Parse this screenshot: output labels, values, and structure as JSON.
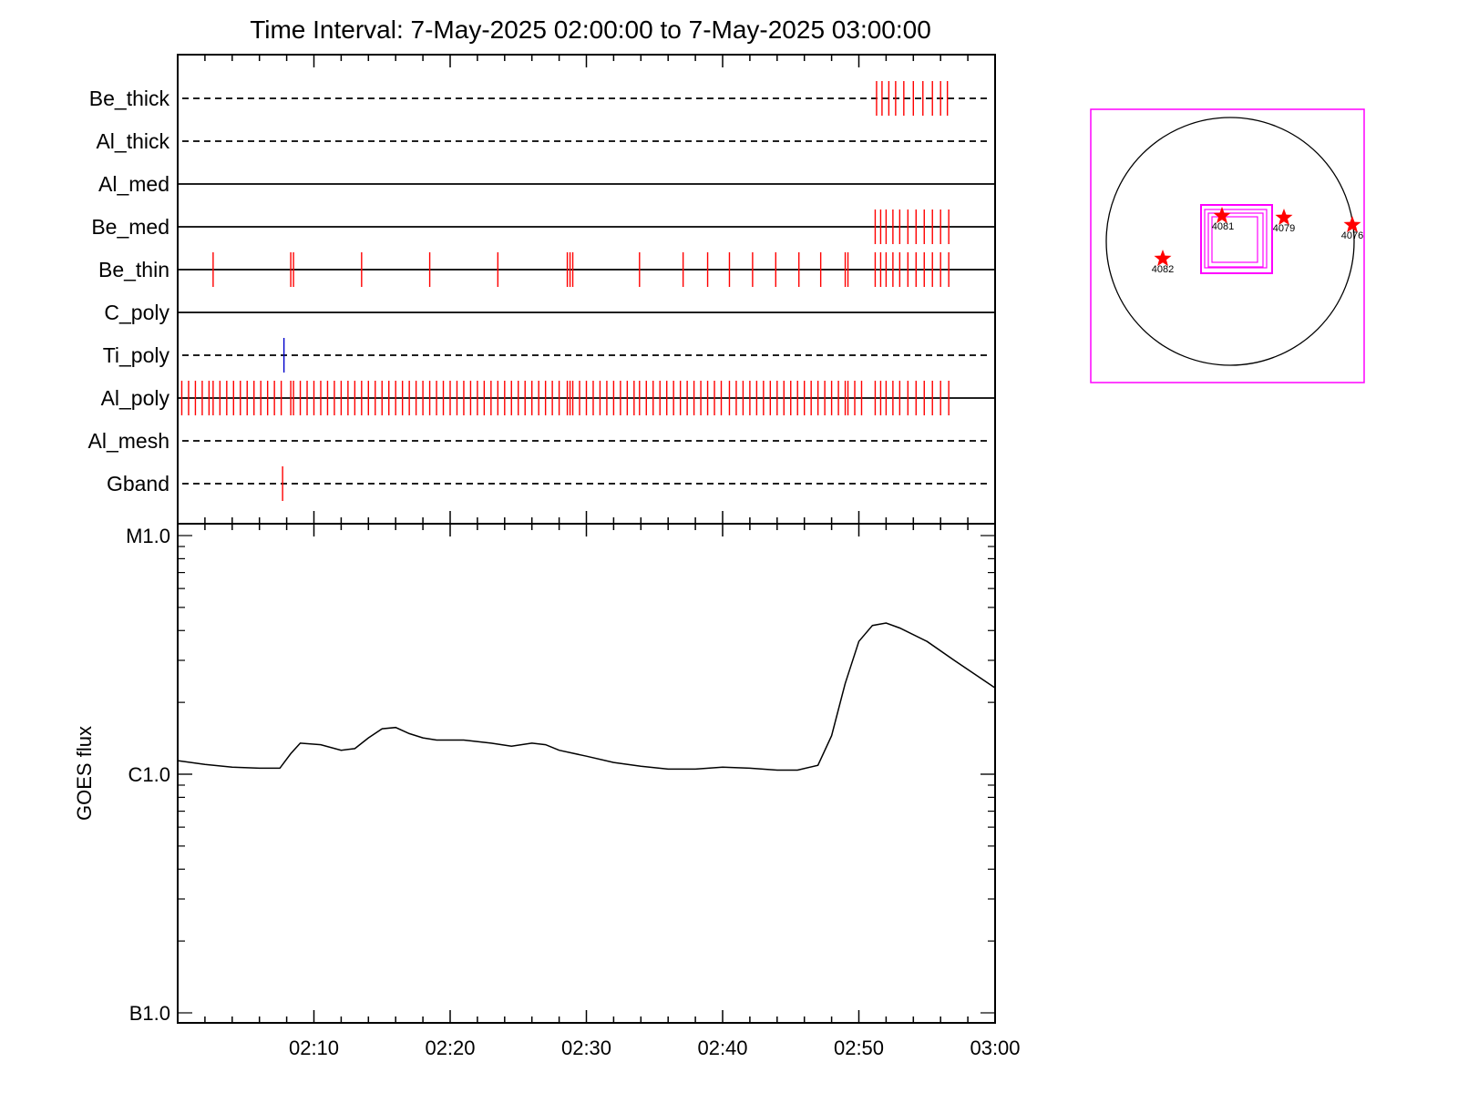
{
  "chart_data": [
    {
      "type": "table",
      "title": "Time Interval:  7-May-2025 02:00:00 to  7-May-2025 03:00:00",
      "x_range": [
        "02:00",
        "03:00"
      ],
      "rows": [
        {
          "label": "Be_thick",
          "style": "dashed",
          "events": [
            {
              "t": 51.3,
              "color": "red"
            },
            {
              "t": 51.7,
              "color": "red"
            },
            {
              "t": 52.2,
              "color": "red"
            },
            {
              "t": 52.7,
              "color": "red"
            },
            {
              "t": 53.3,
              "color": "red"
            },
            {
              "t": 54.0,
              "color": "red"
            },
            {
              "t": 54.7,
              "color": "red"
            },
            {
              "t": 55.4,
              "color": "red"
            },
            {
              "t": 56.0,
              "color": "red"
            },
            {
              "t": 56.5,
              "color": "red"
            }
          ]
        },
        {
          "label": "Al_thick",
          "style": "dashed",
          "events": []
        },
        {
          "label": "Al_med",
          "style": "solid",
          "events": []
        },
        {
          "label": "Be_med",
          "style": "solid",
          "events": [
            {
              "t": 51.2,
              "color": "red"
            },
            {
              "t": 51.6,
              "color": "red"
            },
            {
              "t": 52.0,
              "color": "red"
            },
            {
              "t": 52.5,
              "color": "red"
            },
            {
              "t": 53.0,
              "color": "red"
            },
            {
              "t": 53.6,
              "color": "red"
            },
            {
              "t": 54.2,
              "color": "red"
            },
            {
              "t": 54.8,
              "color": "red"
            },
            {
              "t": 55.4,
              "color": "red"
            },
            {
              "t": 56.0,
              "color": "red"
            },
            {
              "t": 56.6,
              "color": "red"
            }
          ]
        },
        {
          "label": "Be_thin",
          "style": "solid",
          "events": [
            {
              "t": 2.6,
              "color": "red"
            },
            {
              "t": 8.3,
              "color": "red"
            },
            {
              "t": 8.5,
              "color": "red"
            },
            {
              "t": 13.5,
              "color": "red"
            },
            {
              "t": 18.5,
              "color": "red"
            },
            {
              "t": 23.5,
              "color": "red"
            },
            {
              "t": 28.6,
              "color": "red"
            },
            {
              "t": 28.8,
              "color": "red"
            },
            {
              "t": 29.0,
              "color": "red"
            },
            {
              "t": 33.9,
              "color": "red"
            },
            {
              "t": 37.1,
              "color": "red"
            },
            {
              "t": 38.9,
              "color": "red"
            },
            {
              "t": 40.5,
              "color": "red"
            },
            {
              "t": 42.2,
              "color": "red"
            },
            {
              "t": 43.9,
              "color": "red"
            },
            {
              "t": 45.6,
              "color": "red"
            },
            {
              "t": 47.2,
              "color": "red"
            },
            {
              "t": 49.0,
              "color": "red"
            },
            {
              "t": 49.2,
              "color": "red"
            },
            {
              "t": 51.2,
              "color": "red"
            },
            {
              "t": 51.6,
              "color": "red"
            },
            {
              "t": 52.0,
              "color": "red"
            },
            {
              "t": 52.5,
              "color": "red"
            },
            {
              "t": 53.0,
              "color": "red"
            },
            {
              "t": 53.6,
              "color": "red"
            },
            {
              "t": 54.2,
              "color": "red"
            },
            {
              "t": 54.8,
              "color": "red"
            },
            {
              "t": 55.4,
              "color": "red"
            },
            {
              "t": 56.0,
              "color": "red"
            },
            {
              "t": 56.6,
              "color": "red"
            }
          ]
        },
        {
          "label": "C_poly",
          "style": "solid",
          "events": []
        },
        {
          "label": "Ti_poly",
          "style": "dashed",
          "events": [
            {
              "t": 7.8,
              "color": "blue"
            }
          ]
        },
        {
          "label": "Al_poly",
          "style": "solid",
          "events": [
            {
              "t": 0.3,
              "color": "red"
            },
            {
              "t": 0.8,
              "color": "red"
            },
            {
              "t": 1.3,
              "color": "red"
            },
            {
              "t": 1.8,
              "color": "red"
            },
            {
              "t": 2.3,
              "color": "red"
            },
            {
              "t": 2.6,
              "color": "red"
            },
            {
              "t": 3.1,
              "color": "red"
            },
            {
              "t": 3.6,
              "color": "red"
            },
            {
              "t": 4.1,
              "color": "red"
            },
            {
              "t": 4.6,
              "color": "red"
            },
            {
              "t": 5.1,
              "color": "red"
            },
            {
              "t": 5.6,
              "color": "red"
            },
            {
              "t": 6.1,
              "color": "red"
            },
            {
              "t": 6.6,
              "color": "red"
            },
            {
              "t": 7.1,
              "color": "red"
            },
            {
              "t": 7.6,
              "color": "red"
            },
            {
              "t": 8.3,
              "color": "red"
            },
            {
              "t": 8.5,
              "color": "red"
            },
            {
              "t": 9.0,
              "color": "red"
            },
            {
              "t": 9.5,
              "color": "red"
            },
            {
              "t": 10.0,
              "color": "red"
            },
            {
              "t": 10.5,
              "color": "red"
            },
            {
              "t": 11.0,
              "color": "red"
            },
            {
              "t": 11.5,
              "color": "red"
            },
            {
              "t": 12.0,
              "color": "red"
            },
            {
              "t": 12.5,
              "color": "red"
            },
            {
              "t": 13.0,
              "color": "red"
            },
            {
              "t": 13.5,
              "color": "red"
            },
            {
              "t": 14.0,
              "color": "red"
            },
            {
              "t": 14.5,
              "color": "red"
            },
            {
              "t": 15.0,
              "color": "red"
            },
            {
              "t": 15.5,
              "color": "red"
            },
            {
              "t": 16.0,
              "color": "red"
            },
            {
              "t": 16.5,
              "color": "red"
            },
            {
              "t": 17.0,
              "color": "red"
            },
            {
              "t": 17.5,
              "color": "red"
            },
            {
              "t": 18.0,
              "color": "red"
            },
            {
              "t": 18.5,
              "color": "red"
            },
            {
              "t": 19.0,
              "color": "red"
            },
            {
              "t": 19.5,
              "color": "red"
            },
            {
              "t": 20.0,
              "color": "red"
            },
            {
              "t": 20.5,
              "color": "red"
            },
            {
              "t": 21.0,
              "color": "red"
            },
            {
              "t": 21.5,
              "color": "red"
            },
            {
              "t": 22.0,
              "color": "red"
            },
            {
              "t": 22.5,
              "color": "red"
            },
            {
              "t": 23.0,
              "color": "red"
            },
            {
              "t": 23.5,
              "color": "red"
            },
            {
              "t": 24.0,
              "color": "red"
            },
            {
              "t": 24.5,
              "color": "red"
            },
            {
              "t": 25.0,
              "color": "red"
            },
            {
              "t": 25.5,
              "color": "red"
            },
            {
              "t": 26.0,
              "color": "red"
            },
            {
              "t": 26.5,
              "color": "red"
            },
            {
              "t": 27.0,
              "color": "red"
            },
            {
              "t": 27.5,
              "color": "red"
            },
            {
              "t": 28.0,
              "color": "red"
            },
            {
              "t": 28.6,
              "color": "red"
            },
            {
              "t": 28.8,
              "color": "red"
            },
            {
              "t": 29.0,
              "color": "red"
            },
            {
              "t": 29.5,
              "color": "red"
            },
            {
              "t": 30.0,
              "color": "red"
            },
            {
              "t": 30.5,
              "color": "red"
            },
            {
              "t": 31.0,
              "color": "red"
            },
            {
              "t": 31.5,
              "color": "red"
            },
            {
              "t": 32.0,
              "color": "red"
            },
            {
              "t": 32.5,
              "color": "red"
            },
            {
              "t": 33.0,
              "color": "red"
            },
            {
              "t": 33.5,
              "color": "red"
            },
            {
              "t": 33.9,
              "color": "red"
            },
            {
              "t": 34.4,
              "color": "red"
            },
            {
              "t": 34.9,
              "color": "red"
            },
            {
              "t": 35.4,
              "color": "red"
            },
            {
              "t": 35.9,
              "color": "red"
            },
            {
              "t": 36.4,
              "color": "red"
            },
            {
              "t": 36.9,
              "color": "red"
            },
            {
              "t": 37.4,
              "color": "red"
            },
            {
              "t": 37.9,
              "color": "red"
            },
            {
              "t": 38.4,
              "color": "red"
            },
            {
              "t": 38.9,
              "color": "red"
            },
            {
              "t": 39.4,
              "color": "red"
            },
            {
              "t": 39.9,
              "color": "red"
            },
            {
              "t": 40.5,
              "color": "red"
            },
            {
              "t": 41.0,
              "color": "red"
            },
            {
              "t": 41.5,
              "color": "red"
            },
            {
              "t": 42.0,
              "color": "red"
            },
            {
              "t": 42.5,
              "color": "red"
            },
            {
              "t": 43.0,
              "color": "red"
            },
            {
              "t": 43.5,
              "color": "red"
            },
            {
              "t": 44.0,
              "color": "red"
            },
            {
              "t": 44.5,
              "color": "red"
            },
            {
              "t": 45.0,
              "color": "red"
            },
            {
              "t": 45.5,
              "color": "red"
            },
            {
              "t": 46.0,
              "color": "red"
            },
            {
              "t": 46.5,
              "color": "red"
            },
            {
              "t": 47.0,
              "color": "red"
            },
            {
              "t": 47.5,
              "color": "red"
            },
            {
              "t": 48.0,
              "color": "red"
            },
            {
              "t": 48.5,
              "color": "red"
            },
            {
              "t": 49.0,
              "color": "red"
            },
            {
              "t": 49.2,
              "color": "red"
            },
            {
              "t": 49.7,
              "color": "red"
            },
            {
              "t": 50.2,
              "color": "red"
            },
            {
              "t": 51.2,
              "color": "red"
            },
            {
              "t": 51.6,
              "color": "red"
            },
            {
              "t": 52.0,
              "color": "red"
            },
            {
              "t": 52.5,
              "color": "red"
            },
            {
              "t": 53.0,
              "color": "red"
            },
            {
              "t": 53.6,
              "color": "red"
            },
            {
              "t": 54.2,
              "color": "red"
            },
            {
              "t": 54.8,
              "color": "red"
            },
            {
              "t": 55.4,
              "color": "red"
            },
            {
              "t": 56.0,
              "color": "red"
            },
            {
              "t": 56.6,
              "color": "red"
            }
          ]
        },
        {
          "label": "Al_mesh",
          "style": "dashed",
          "events": []
        },
        {
          "label": "Gband",
          "style": "dashed",
          "events": [
            {
              "t": 7.7,
              "color": "red"
            }
          ]
        }
      ]
    },
    {
      "type": "line",
      "xlabel": "",
      "ylabel": "GOES flux",
      "y_scale": "log",
      "y_ticks": [
        "M1.0",
        "C1.0",
        "B1.0"
      ],
      "ylim_class": [
        "B1.0",
        "M1.0"
      ],
      "x_ticks": [
        "02:10",
        "02:20",
        "02:30",
        "02:40",
        "02:50",
        "03:00"
      ],
      "xlim": [
        "02:00",
        "03:00"
      ],
      "series": [
        {
          "x_minutes_after_0200": [
            0,
            2,
            4,
            6,
            7.5,
            8.3,
            9,
            10.5,
            12,
            13,
            14,
            15,
            16,
            17,
            18,
            19,
            21,
            23,
            24.5,
            26,
            27,
            28,
            30,
            32,
            34,
            36,
            38,
            40,
            42,
            44,
            45.5,
            47,
            48,
            49,
            50,
            51,
            52,
            53,
            55,
            57,
            60
          ],
          "y_watts_m2": [
            1.14e-06,
            1.1e-06,
            1.07e-06,
            1.06e-06,
            1.06e-06,
            1.22e-06,
            1.35e-06,
            1.33e-06,
            1.26e-06,
            1.28e-06,
            1.42e-06,
            1.55e-06,
            1.57e-06,
            1.48e-06,
            1.42e-06,
            1.39e-06,
            1.39e-06,
            1.35e-06,
            1.31e-06,
            1.35e-06,
            1.33e-06,
            1.26e-06,
            1.19e-06,
            1.12e-06,
            1.08e-06,
            1.05e-06,
            1.05e-06,
            1.07e-06,
            1.06e-06,
            1.04e-06,
            1.04e-06,
            1.09e-06,
            1.45e-06,
            2.4e-06,
            3.6e-06,
            4.2e-06,
            4.3e-06,
            4.1e-06,
            3.6e-06,
            3e-06,
            2.3e-06
          ]
        }
      ]
    }
  ],
  "solar_map": {
    "regions": [
      {
        "label": "4081",
        "color": "#ff0000"
      },
      {
        "label": "4079",
        "color": "#ff0000"
      },
      {
        "label": "4076",
        "color": "#ff0000"
      },
      {
        "label": "4082",
        "color": "#ff0000"
      }
    ],
    "box_color": "#ff00ff",
    "disk_color": "#000000"
  },
  "colors": {
    "event_red": "#ff0000",
    "event_blue": "#0000cc",
    "axes": "#000000"
  }
}
